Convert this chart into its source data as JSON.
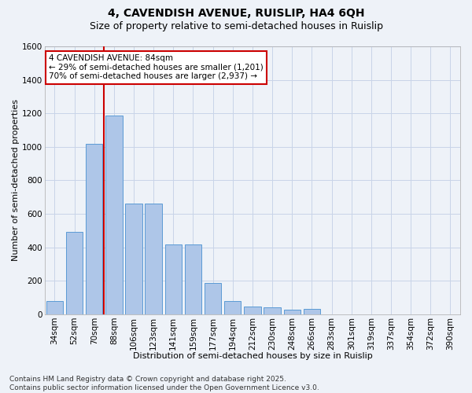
{
  "title_line1": "4, CAVENDISH AVENUE, RUISLIP, HA4 6QH",
  "title_line2": "Size of property relative to semi-detached houses in Ruislip",
  "xlabel": "Distribution of semi-detached houses by size in Ruislip",
  "ylabel": "Number of semi-detached properties",
  "categories": [
    "34sqm",
    "52sqm",
    "70sqm",
    "88sqm",
    "106sqm",
    "123sqm",
    "141sqm",
    "159sqm",
    "177sqm",
    "194sqm",
    "212sqm",
    "230sqm",
    "248sqm",
    "266sqm",
    "283sqm",
    "301sqm",
    "319sqm",
    "337sqm",
    "354sqm",
    "372sqm",
    "390sqm"
  ],
  "values": [
    80,
    490,
    1020,
    1185,
    660,
    660,
    415,
    415,
    185,
    80,
    45,
    40,
    25,
    30,
    0,
    0,
    0,
    0,
    0,
    0,
    0
  ],
  "bar_color": "#aec6e8",
  "bar_edgecolor": "#5b9bd5",
  "red_line_after_bar": 2,
  "annotation_title": "4 CAVENDISH AVENUE: 84sqm",
  "annotation_line2": "← 29% of semi-detached houses are smaller (1,201)",
  "annotation_line3": "70% of semi-detached houses are larger (2,937) →",
  "annotation_box_color": "#ffffff",
  "annotation_box_edgecolor": "#cc0000",
  "red_line_color": "#cc0000",
  "ylim": [
    0,
    1600
  ],
  "yticks": [
    0,
    200,
    400,
    600,
    800,
    1000,
    1200,
    1400,
    1600
  ],
  "grid_color": "#c8d4e8",
  "bg_color": "#eef2f8",
  "footer_line1": "Contains HM Land Registry data © Crown copyright and database right 2025.",
  "footer_line2": "Contains public sector information licensed under the Open Government Licence v3.0.",
  "title_fontsize": 10,
  "subtitle_fontsize": 9,
  "axis_label_fontsize": 8,
  "tick_fontsize": 7.5,
  "annotation_fontsize": 7.5,
  "footer_fontsize": 6.5
}
